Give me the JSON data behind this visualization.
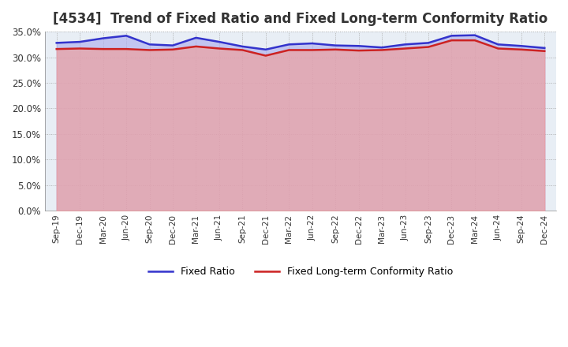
{
  "title": "[4534]  Trend of Fixed Ratio and Fixed Long-term Conformity Ratio",
  "title_fontsize": 12,
  "ylim": [
    0.0,
    0.35
  ],
  "ytick_values": [
    0.0,
    0.05,
    0.1,
    0.15,
    0.2,
    0.25,
    0.3,
    0.35
  ],
  "x_labels": [
    "Sep-19",
    "Dec-19",
    "Mar-20",
    "Jun-20",
    "Sep-20",
    "Dec-20",
    "Mar-21",
    "Jun-21",
    "Sep-21",
    "Dec-21",
    "Mar-22",
    "Jun-22",
    "Sep-22",
    "Dec-22",
    "Mar-23",
    "Jun-23",
    "Sep-23",
    "Dec-23",
    "Mar-24",
    "Jun-24",
    "Sep-24",
    "Dec-24"
  ],
  "fixed_ratio": [
    0.328,
    0.33,
    0.337,
    0.342,
    0.325,
    0.323,
    0.338,
    0.33,
    0.321,
    0.315,
    0.325,
    0.327,
    0.323,
    0.322,
    0.319,
    0.325,
    0.328,
    0.342,
    0.343,
    0.325,
    0.322,
    0.318
  ],
  "fixed_lt_ratio": [
    0.316,
    0.317,
    0.316,
    0.316,
    0.314,
    0.315,
    0.321,
    0.317,
    0.314,
    0.303,
    0.314,
    0.314,
    0.315,
    0.313,
    0.314,
    0.317,
    0.32,
    0.333,
    0.333,
    0.317,
    0.315,
    0.312
  ],
  "fixed_ratio_color": "#3333cc",
  "fixed_ratio_fill": "#aaaaee",
  "fixed_lt_ratio_color": "#cc2222",
  "fixed_lt_ratio_fill": "#eea0a0",
  "background_color": "#ffffff",
  "plot_bg_color": "#e8eef5",
  "grid_color": "#aaaaaa",
  "legend_labels": [
    "Fixed Ratio",
    "Fixed Long-term Conformity Ratio"
  ],
  "line_width": 1.8
}
